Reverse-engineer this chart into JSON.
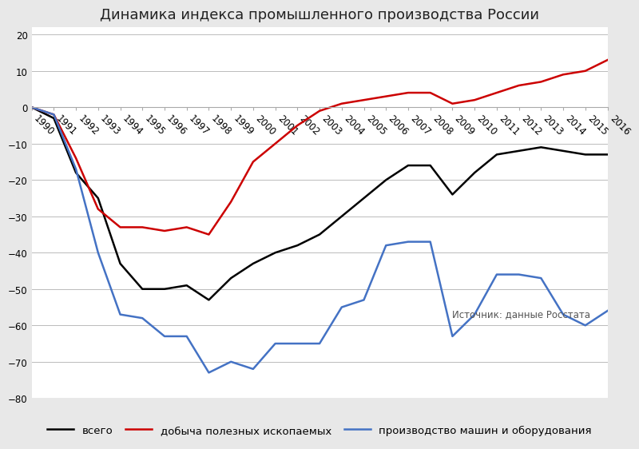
{
  "title": "Динамика индекса промышленного производства России",
  "source_text": "Источник: данные Росстата",
  "years": [
    1990,
    1991,
    1992,
    1993,
    1994,
    1995,
    1996,
    1997,
    1998,
    1999,
    2000,
    2001,
    2002,
    2003,
    2004,
    2005,
    2006,
    2007,
    2008,
    2009,
    2010,
    2011,
    2012,
    2013,
    2014,
    2015,
    2016
  ],
  "vsego": [
    0,
    -3,
    -18,
    -25,
    -43,
    -50,
    -50,
    -49,
    -53,
    -47,
    -43,
    -40,
    -38,
    -35,
    -30,
    -25,
    -20,
    -16,
    -16,
    -24,
    -18,
    -13,
    -12,
    -11,
    -12,
    -13,
    -13
  ],
  "dobycha": [
    0,
    -2,
    -14,
    -28,
    -33,
    -33,
    -34,
    -33,
    -35,
    -26,
    -15,
    -10,
    -5,
    -1,
    1,
    2,
    3,
    4,
    4,
    1,
    2,
    4,
    6,
    7,
    9,
    10,
    13
  ],
  "mashiny": [
    0,
    -2,
    -17,
    -40,
    -57,
    -58,
    -63,
    -63,
    -73,
    -70,
    -72,
    -65,
    -65,
    -65,
    -55,
    -53,
    -38,
    -37,
    -37,
    -63,
    -57,
    -46,
    -46,
    -47,
    -57,
    -60,
    -56
  ],
  "ylim": [
    -80,
    22
  ],
  "yticks": [
    -80,
    -70,
    -60,
    -50,
    -40,
    -30,
    -20,
    -10,
    0,
    10,
    20
  ],
  "line_colors": {
    "vsego": "#000000",
    "dobycha": "#cc0000",
    "mashiny": "#4472c4"
  },
  "legend_labels": {
    "vsego": "всего",
    "dobycha": "добыча полезных ископаемых",
    "mashiny": "производство машин и оборудования"
  },
  "background_color": "#e8e8e8",
  "plot_bg_color": "#ffffff",
  "grid_color": "#bbbbbb",
  "title_fontsize": 13,
  "axis_fontsize": 8.5,
  "legend_fontsize": 9.5
}
